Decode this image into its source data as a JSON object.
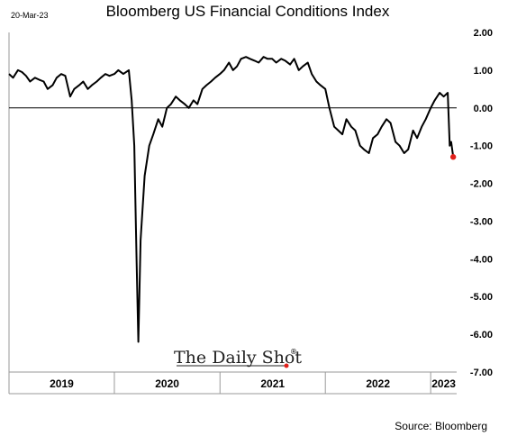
{
  "header": {
    "title": "Bloomberg US Financial Conditions Index",
    "date": "20-Mar-23"
  },
  "footer": {
    "source": "Source: Bloomberg",
    "watermark": "The Daily Shot",
    "watermark_mark": "®"
  },
  "chart_data": {
    "type": "line",
    "title": "Bloomberg US Financial Conditions Index",
    "xlabel": "",
    "ylabel": "",
    "ylim": [
      -7,
      2
    ],
    "yticks": [
      2,
      1,
      0,
      -1,
      -2,
      -3,
      -4,
      -5,
      -6,
      -7
    ],
    "ytick_labels": [
      "2.00",
      "1.00",
      "0.00",
      "-1.00",
      "-2.00",
      "-3.00",
      "-4.00",
      "-5.00",
      "-6.00",
      "-7.00"
    ],
    "categories": [
      "2019",
      "2020",
      "2021",
      "2022",
      "2023"
    ],
    "xlim": [
      "2019-01-01",
      "2023-04-01"
    ],
    "grid": false,
    "zero_line": true,
    "last_point_marker_color": "#e0201b",
    "x": [
      "2019-01-01",
      "2019-01-15",
      "2019-02-01",
      "2019-02-15",
      "2019-03-01",
      "2019-03-15",
      "2019-04-01",
      "2019-04-15",
      "2019-05-01",
      "2019-05-15",
      "2019-06-01",
      "2019-06-15",
      "2019-07-01",
      "2019-07-15",
      "2019-08-01",
      "2019-08-15",
      "2019-09-01",
      "2019-09-15",
      "2019-10-01",
      "2019-10-15",
      "2019-11-01",
      "2019-11-15",
      "2019-12-01",
      "2019-12-15",
      "2020-01-01",
      "2020-01-15",
      "2020-02-01",
      "2020-02-20",
      "2020-03-01",
      "2020-03-10",
      "2020-03-18",
      "2020-03-24",
      "2020-04-01",
      "2020-04-15",
      "2020-05-01",
      "2020-05-15",
      "2020-06-01",
      "2020-06-15",
      "2020-07-01",
      "2020-07-15",
      "2020-08-01",
      "2020-08-15",
      "2020-09-01",
      "2020-09-15",
      "2020-10-01",
      "2020-10-15",
      "2020-11-01",
      "2020-11-15",
      "2020-12-01",
      "2020-12-15",
      "2021-01-01",
      "2021-01-15",
      "2021-02-01",
      "2021-02-15",
      "2021-03-01",
      "2021-03-15",
      "2021-04-01",
      "2021-04-15",
      "2021-05-01",
      "2021-05-15",
      "2021-06-01",
      "2021-06-15",
      "2021-07-01",
      "2021-07-15",
      "2021-08-01",
      "2021-08-15",
      "2021-09-01",
      "2021-09-15",
      "2021-10-01",
      "2021-10-15",
      "2021-11-01",
      "2021-11-15",
      "2021-12-01",
      "2021-12-15",
      "2022-01-01",
      "2022-01-15",
      "2022-02-01",
      "2022-02-15",
      "2022-03-01",
      "2022-03-15",
      "2022-04-01",
      "2022-04-15",
      "2022-05-01",
      "2022-05-15",
      "2022-06-01",
      "2022-06-15",
      "2022-07-01",
      "2022-07-15",
      "2022-08-01",
      "2022-08-15",
      "2022-09-01",
      "2022-09-15",
      "2022-10-01",
      "2022-10-15",
      "2022-11-01",
      "2022-11-15",
      "2022-12-01",
      "2022-12-15",
      "2023-01-01",
      "2023-01-15",
      "2023-02-01",
      "2023-02-15",
      "2023-03-01",
      "2023-03-08",
      "2023-03-13",
      "2023-03-20"
    ],
    "series": [
      {
        "values": [
          0.9,
          0.8,
          1.0,
          0.95,
          0.85,
          0.7,
          0.8,
          0.75,
          0.7,
          0.5,
          0.6,
          0.8,
          0.9,
          0.85,
          0.3,
          0.5,
          0.6,
          0.7,
          0.5,
          0.6,
          0.7,
          0.8,
          0.9,
          0.85,
          0.9,
          1.0,
          0.9,
          1.0,
          0.2,
          -1.0,
          -4.0,
          -6.2,
          -3.5,
          -1.8,
          -1.0,
          -0.7,
          -0.3,
          -0.5,
          0.0,
          0.1,
          0.3,
          0.2,
          0.1,
          0.0,
          0.2,
          0.1,
          0.5,
          0.6,
          0.7,
          0.8,
          0.9,
          1.0,
          1.2,
          1.0,
          1.1,
          1.3,
          1.35,
          1.3,
          1.25,
          1.2,
          1.35,
          1.3,
          1.3,
          1.2,
          1.3,
          1.25,
          1.15,
          1.3,
          1.0,
          1.1,
          1.2,
          0.9,
          0.7,
          0.6,
          0.5,
          0.0,
          -0.5,
          -0.6,
          -0.7,
          -0.3,
          -0.5,
          -0.6,
          -1.0,
          -1.1,
          -1.2,
          -0.8,
          -0.7,
          -0.5,
          -0.3,
          -0.4,
          -0.9,
          -1.0,
          -1.2,
          -1.1,
          -0.6,
          -0.8,
          -0.5,
          -0.3,
          0.0,
          0.2,
          0.4,
          0.3,
          0.4,
          -1.0,
          -0.9,
          -1.3
        ]
      }
    ]
  }
}
